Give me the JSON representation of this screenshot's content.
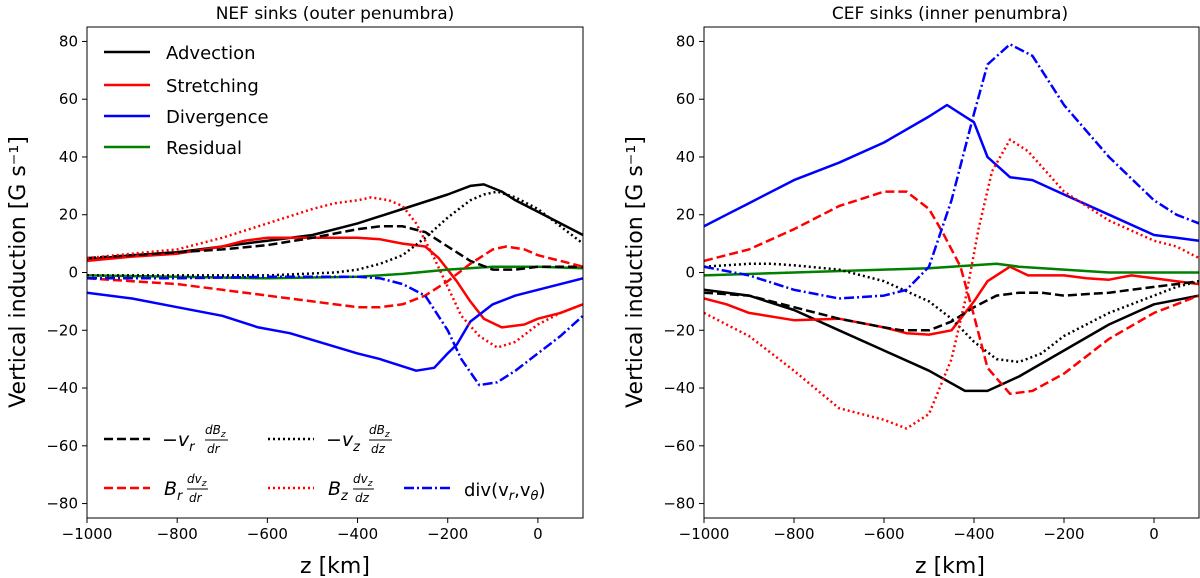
{
  "chart_data": [
    {
      "type": "line",
      "title": "NEF sinks (outer penumbra)",
      "xlabel": "z [km]",
      "ylabel": "Vertical induction [G s⁻¹]",
      "xlim": [
        -1000,
        100
      ],
      "ylim": [
        -85,
        85
      ],
      "xticks": [
        -1000,
        -800,
        -600,
        -400,
        -200,
        0
      ],
      "yticks": [
        -80,
        -60,
        -40,
        -20,
        0,
        20,
        40,
        60,
        80
      ],
      "tick_labels_x": [
        "−1000",
        "−800",
        "−600",
        "−400",
        "−200",
        "0"
      ],
      "tick_labels_y": [
        "−80",
        "−60",
        "−40",
        "−20",
        "0",
        "20",
        "40",
        "60",
        "80"
      ],
      "legend_main": [
        {
          "label": "Advection",
          "series": "advection"
        },
        {
          "label": "Stretching",
          "series": "stretching"
        },
        {
          "label": "Divergence",
          "series": "divergence"
        },
        {
          "label": "Residual",
          "series": "residual"
        }
      ],
      "legend_terms": [
        {
          "base": "−v",
          "sub": "r",
          "num": "dB",
          "num_sub": "z",
          "den": "dr",
          "series": "adv_r"
        },
        {
          "base": "−v",
          "sub": "z",
          "num": "dB",
          "num_sub": "z",
          "den": "dz",
          "series": "adv_z"
        },
        {
          "base": "B",
          "sub": "r",
          "num": "dv",
          "num_sub": "z",
          "den": "dr",
          "series": "str_r"
        },
        {
          "base": "B",
          "sub": "z",
          "num": "dv",
          "num_sub": "z",
          "den": "dz",
          "series": "str_z"
        },
        {
          "text": "div(v",
          "sub1": "r",
          "sep": ",v",
          "sub2": "θ",
          "close": ")",
          "series": "div"
        }
      ],
      "series": [
        {
          "name": "Advection",
          "key": "advection",
          "color": "#000000",
          "dash": "solid",
          "x": [
            -1000,
            -900,
            -800,
            -700,
            -600,
            -500,
            -400,
            -300,
            -200,
            -150,
            -120,
            -80,
            -50,
            0,
            50,
            100
          ],
          "y": [
            4.5,
            6,
            7,
            9,
            11,
            13,
            17,
            22,
            27,
            30,
            30.5,
            28,
            25,
            21,
            17,
            13
          ]
        },
        {
          "name": "Stretching",
          "key": "stretching",
          "color": "#ff0000",
          "dash": "solid",
          "x": [
            -1000,
            -900,
            -800,
            -700,
            -650,
            -600,
            -500,
            -400,
            -350,
            -300,
            -250,
            -220,
            -180,
            -150,
            -120,
            -80,
            -30,
            0,
            50,
            100
          ],
          "y": [
            4,
            5.5,
            6.5,
            9,
            11,
            12,
            12,
            12,
            11.5,
            10,
            9,
            5,
            -3,
            -10,
            -16,
            -19,
            -18,
            -16,
            -14,
            -11
          ]
        },
        {
          "name": "Divergence",
          "key": "divergence",
          "color": "#0000ff",
          "dash": "solid",
          "x": [
            -1000,
            -900,
            -800,
            -700,
            -620,
            -550,
            -400,
            -350,
            -270,
            -230,
            -200,
            -180,
            -150,
            -100,
            -50,
            0,
            50,
            100
          ],
          "y": [
            -7,
            -9,
            -12,
            -15,
            -19,
            -21,
            -28,
            -30,
            -34,
            -33,
            -28,
            -25,
            -17,
            -11,
            -8,
            -6,
            -4,
            -2
          ]
        },
        {
          "name": "Residual",
          "key": "residual",
          "color": "#008000",
          "dash": "solid",
          "x": [
            -1000,
            -800,
            -600,
            -400,
            -300,
            -200,
            -100,
            0,
            100
          ],
          "y": [
            -1,
            -1.5,
            -2,
            -1.5,
            -0.5,
            1,
            2,
            2,
            1.5
          ]
        },
        {
          "name": "-v_r dB_z/dr",
          "key": "adv_r",
          "color": "#000000",
          "dash": "dashed",
          "x": [
            -1000,
            -900,
            -800,
            -700,
            -600,
            -500,
            -400,
            -350,
            -300,
            -250,
            -200,
            -150,
            -100,
            -50,
            0,
            50,
            100
          ],
          "y": [
            5,
            6,
            7,
            8,
            9.5,
            12,
            15,
            16,
            16,
            14,
            9,
            4,
            1,
            1,
            2,
            2,
            2
          ]
        },
        {
          "name": "-v_z dB_z/dz",
          "key": "adv_z",
          "color": "#000000",
          "dash": "dotted",
          "x": [
            -1000,
            -800,
            -600,
            -450,
            -400,
            -350,
            -300,
            -250,
            -200,
            -150,
            -120,
            -90,
            -50,
            0,
            50,
            100
          ],
          "y": [
            -1,
            -1,
            -1,
            0,
            1,
            3,
            6,
            12,
            19,
            25,
            27,
            28,
            26,
            22,
            16,
            10
          ]
        },
        {
          "name": "B_r dv_z/dr",
          "key": "str_r",
          "color": "#ff0000",
          "dash": "dashed",
          "x": [
            -1000,
            -900,
            -800,
            -700,
            -600,
            -500,
            -400,
            -350,
            -300,
            -250,
            -200,
            -150,
            -100,
            -70,
            -30,
            0,
            50,
            100
          ],
          "y": [
            -2,
            -3,
            -4,
            -6,
            -8,
            -10,
            -12,
            -12,
            -11,
            -8,
            -3,
            3,
            8,
            9,
            8,
            6,
            4,
            2
          ]
        },
        {
          "name": "B_z dv_z/dz",
          "key": "str_z",
          "color": "#ff0000",
          "dash": "dotted",
          "x": [
            -1000,
            -900,
            -800,
            -700,
            -600,
            -500,
            -450,
            -400,
            -370,
            -330,
            -300,
            -270,
            -230,
            -200,
            -170,
            -130,
            -90,
            -50,
            0,
            50,
            100
          ],
          "y": [
            5,
            6.5,
            8,
            12,
            17,
            22,
            24,
            25,
            26,
            25,
            23,
            17,
            5,
            -5,
            -15,
            -22,
            -26,
            -24,
            -18,
            -14,
            -11
          ]
        },
        {
          "name": "div(v_r,v_θ)",
          "key": "div",
          "color": "#0000ff",
          "dash": "dashdot",
          "x": [
            -1000,
            -800,
            -600,
            -400,
            -350,
            -300,
            -250,
            -200,
            -170,
            -130,
            -90,
            -50,
            0,
            50,
            100
          ],
          "y": [
            -2,
            -2,
            -1.5,
            -1.5,
            -2,
            -4,
            -8,
            -20,
            -30,
            -39,
            -38,
            -34,
            -28,
            -22,
            -15
          ]
        }
      ]
    },
    {
      "type": "line",
      "title": "CEF sinks (inner penumbra)",
      "xlabel": "z [km]",
      "ylabel": "Vertical induction [G s⁻¹]",
      "xlim": [
        -1000,
        100
      ],
      "ylim": [
        -85,
        85
      ],
      "xticks": [
        -1000,
        -800,
        -600,
        -400,
        -200,
        0
      ],
      "yticks": [
        -80,
        -60,
        -40,
        -20,
        0,
        20,
        40,
        60,
        80
      ],
      "tick_labels_x": [
        "−1000",
        "−800",
        "−600",
        "−400",
        "−200",
        "0"
      ],
      "tick_labels_y": [
        "−80",
        "−60",
        "−40",
        "−20",
        "0",
        "20",
        "40",
        "60",
        "80"
      ],
      "series": [
        {
          "name": "Advection",
          "key": "advection",
          "color": "#000000",
          "dash": "solid",
          "x": [
            -1000,
            -900,
            -800,
            -700,
            -600,
            -500,
            -420,
            -370,
            -300,
            -200,
            -100,
            0,
            100
          ],
          "y": [
            -6,
            -8,
            -13,
            -20,
            -27,
            -34,
            -41,
            -41,
            -36,
            -27,
            -18,
            -11,
            -8
          ]
        },
        {
          "name": "Stretching",
          "key": "stretching",
          "color": "#ff0000",
          "dash": "solid",
          "x": [
            -1000,
            -950,
            -900,
            -800,
            -700,
            -600,
            -550,
            -500,
            -450,
            -400,
            -370,
            -320,
            -280,
            -200,
            -150,
            -100,
            -50,
            0,
            50,
            100
          ],
          "y": [
            -9,
            -11,
            -14,
            -16.5,
            -16,
            -19,
            -21,
            -21.5,
            -20,
            -10,
            -3,
            2,
            -1,
            -1,
            -2,
            -2.5,
            -1,
            -2,
            -3,
            -4
          ]
        },
        {
          "name": "Divergence",
          "key": "divergence",
          "color": "#0000ff",
          "dash": "solid",
          "x": [
            -1000,
            -950,
            -900,
            -800,
            -700,
            -600,
            -500,
            -460,
            -400,
            -370,
            -320,
            -270,
            -200,
            -100,
            0,
            50,
            100
          ],
          "y": [
            16,
            20,
            24,
            32,
            38,
            45,
            54,
            58,
            52,
            40,
            33,
            32,
            27,
            20,
            13,
            12,
            11
          ]
        },
        {
          "name": "Residual",
          "key": "residual",
          "color": "#008000",
          "dash": "solid",
          "x": [
            -1000,
            -800,
            -600,
            -500,
            -400,
            -350,
            -300,
            -200,
            -100,
            0,
            100
          ],
          "y": [
            -1,
            0,
            1,
            1.5,
            2.5,
            3,
            2,
            1,
            0,
            0,
            0
          ]
        },
        {
          "name": "-v_r dB_z/dr",
          "key": "adv_r",
          "color": "#000000",
          "dash": "dashed",
          "x": [
            -1000,
            -900,
            -800,
            -700,
            -600,
            -560,
            -500,
            -450,
            -400,
            -350,
            -300,
            -250,
            -200,
            -100,
            0,
            50,
            100
          ],
          "y": [
            -7,
            -8,
            -12,
            -16,
            -19,
            -20,
            -20,
            -17,
            -12,
            -8,
            -7,
            -7,
            -8,
            -7,
            -5,
            -4,
            -3
          ]
        },
        {
          "name": "-v_z dB_z/dz",
          "key": "adv_z",
          "color": "#000000",
          "dash": "dotted",
          "x": [
            -1000,
            -900,
            -850,
            -800,
            -700,
            -600,
            -500,
            -450,
            -400,
            -350,
            -300,
            -250,
            -200,
            -100,
            0,
            50,
            100
          ],
          "y": [
            2,
            3,
            3,
            2.5,
            1,
            -3,
            -10,
            -16,
            -24,
            -30,
            -31,
            -28,
            -22,
            -14,
            -8,
            -5,
            -3
          ]
        },
        {
          "name": "B_r dv_z/dr",
          "key": "str_r",
          "color": "#ff0000",
          "dash": "dashed",
          "x": [
            -1000,
            -900,
            -800,
            -700,
            -600,
            -550,
            -500,
            -470,
            -430,
            -400,
            -370,
            -320,
            -270,
            -200,
            -100,
            0,
            50,
            100
          ],
          "y": [
            4,
            8,
            15,
            23,
            28,
            28,
            22,
            14,
            2,
            -15,
            -33,
            -42,
            -41,
            -35,
            -23,
            -14,
            -11,
            -8
          ]
        },
        {
          "name": "B_z dv_z/dz",
          "key": "str_z",
          "color": "#ff0000",
          "dash": "dotted",
          "x": [
            -1000,
            -950,
            -900,
            -800,
            -700,
            -600,
            -550,
            -500,
            -450,
            -420,
            -390,
            -360,
            -320,
            -280,
            -200,
            -100,
            0,
            50,
            100
          ],
          "y": [
            -14,
            -18,
            -22,
            -34,
            -47,
            -51,
            -54,
            -49,
            -30,
            -10,
            15,
            35,
            46,
            42,
            28,
            18,
            11,
            9,
            5
          ]
        },
        {
          "name": "div(v_r,v_θ)",
          "key": "div",
          "color": "#0000ff",
          "dash": "dashdot",
          "x": [
            -1000,
            -900,
            -800,
            -700,
            -600,
            -550,
            -500,
            -450,
            -400,
            -370,
            -320,
            -270,
            -200,
            -100,
            0,
            50,
            100
          ],
          "y": [
            2,
            -1,
            -6,
            -9,
            -8,
            -6,
            2,
            25,
            55,
            72,
            79,
            75,
            58,
            40,
            25,
            20,
            17
          ]
        }
      ]
    }
  ]
}
